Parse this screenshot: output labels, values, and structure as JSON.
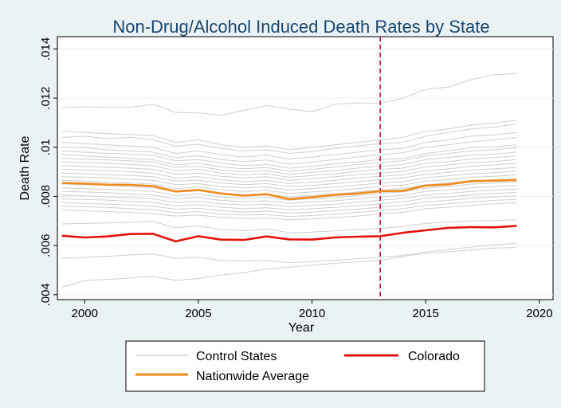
{
  "chart_data": {
    "type": "line",
    "title": "Non-Drug/Alcohol Induced Death Rates by State",
    "xlabel": "Year",
    "ylabel": "Death Rate",
    "xlim": [
      1998.8,
      2020.6
    ],
    "ylim": [
      0.0038,
      0.0145
    ],
    "x_ticks": [
      2000,
      2005,
      2010,
      2015,
      2020
    ],
    "x_tick_labels": [
      "2000",
      "2005",
      "2010",
      "2015",
      "2020"
    ],
    "y_ticks": [
      0.004,
      0.006,
      0.008,
      0.01,
      0.012,
      0.014
    ],
    "y_tick_labels": [
      ".004",
      ".006",
      ".008",
      ".01",
      ".012",
      ".014"
    ],
    "grid": "horizontal",
    "vertical_reference_line": {
      "x": 2013,
      "style": "dashed",
      "color": "#b3124a"
    },
    "legend_position": "bottom",
    "x": [
      1999,
      2000,
      2001,
      2002,
      2003,
      2004,
      2005,
      2006,
      2007,
      2008,
      2009,
      2010,
      2011,
      2012,
      2013,
      2014,
      2015,
      2016,
      2017,
      2018,
      2019
    ],
    "series": [
      {
        "name": "Nationwide Average",
        "color": "#f28a1e",
        "values": [
          0.00855,
          0.00852,
          0.00848,
          0.00847,
          0.00842,
          0.0082,
          0.00826,
          0.00812,
          0.00803,
          0.00809,
          0.00789,
          0.00797,
          0.00806,
          0.00812,
          0.00821,
          0.00823,
          0.00844,
          0.00849,
          0.00862,
          0.00864,
          0.00866
        ]
      },
      {
        "name": "Colorado",
        "color": "#e3120b",
        "values": [
          0.0064,
          0.00633,
          0.00637,
          0.00647,
          0.00648,
          0.00617,
          0.00638,
          0.00624,
          0.00623,
          0.00637,
          0.00625,
          0.00624,
          0.00633,
          0.00636,
          0.00638,
          0.00652,
          0.00662,
          0.00672,
          0.00675,
          0.00674,
          0.0068
        ]
      }
    ],
    "control_states": {
      "name": "Control States",
      "color": "#cfcfcf",
      "lines": [
        [
          0.0116,
          0.01165,
          0.01162,
          0.01162,
          0.01175,
          0.01142,
          0.0114,
          0.0113,
          0.0115,
          0.0117,
          0.01155,
          0.01145,
          0.01175,
          0.0118,
          0.01178,
          0.012,
          0.01235,
          0.01245,
          0.01275,
          0.01295,
          0.013
        ],
        [
          0.01065,
          0.0106,
          0.01055,
          0.01052,
          0.01048,
          0.0102,
          0.0103,
          0.0101,
          0.01,
          0.01005,
          0.0099,
          0.01,
          0.0101,
          0.0102,
          0.0103,
          0.0104,
          0.01065,
          0.01075,
          0.0109,
          0.01098,
          0.0111
        ],
        [
          0.0104,
          0.01045,
          0.01035,
          0.0104,
          0.0103,
          0.01005,
          0.01012,
          0.00995,
          0.00985,
          0.0099,
          0.00975,
          0.00982,
          0.00995,
          0.01005,
          0.01015,
          0.0102,
          0.01045,
          0.0106,
          0.01075,
          0.01082,
          0.01095
        ],
        [
          0.0102,
          0.01015,
          0.0101,
          0.01005,
          0.01,
          0.00975,
          0.00985,
          0.0097,
          0.0096,
          0.00968,
          0.00952,
          0.0096,
          0.0097,
          0.0098,
          0.0099,
          0.00995,
          0.0102,
          0.0103,
          0.01045,
          0.0105,
          0.0106
        ],
        [
          0.01,
          0.00998,
          0.0099,
          0.00985,
          0.0098,
          0.00958,
          0.00965,
          0.0095,
          0.00942,
          0.00948,
          0.00932,
          0.0094,
          0.0095,
          0.0096,
          0.0097,
          0.00978,
          0.01,
          0.0101,
          0.01022,
          0.0103,
          0.0104
        ],
        [
          0.00985,
          0.0098,
          0.00975,
          0.00972,
          0.00968,
          0.00945,
          0.0095,
          0.00935,
          0.00925,
          0.0093,
          0.00915,
          0.00922,
          0.00932,
          0.0094,
          0.0095,
          0.00955,
          0.00975,
          0.00985,
          0.00998,
          0.01002,
          0.0101
        ],
        [
          0.0097,
          0.00965,
          0.0096,
          0.00955,
          0.0095,
          0.00928,
          0.00935,
          0.0092,
          0.00912,
          0.00918,
          0.00902,
          0.0091,
          0.0092,
          0.0093,
          0.00938,
          0.00945,
          0.00965,
          0.00975,
          0.00985,
          0.0099,
          0.00998
        ],
        [
          0.00955,
          0.00952,
          0.00948,
          0.00945,
          0.0094,
          0.00918,
          0.00922,
          0.00908,
          0.009,
          0.00905,
          0.0089,
          0.00898,
          0.00905,
          0.00915,
          0.00922,
          0.0093,
          0.0095,
          0.00958,
          0.00968,
          0.00972,
          0.0098
        ],
        [
          0.0094,
          0.00938,
          0.00935,
          0.0093,
          0.00925,
          0.00905,
          0.0091,
          0.00895,
          0.00888,
          0.00892,
          0.00878,
          0.00885,
          0.00892,
          0.00902,
          0.0091,
          0.00915,
          0.00935,
          0.00942,
          0.00952,
          0.00958,
          0.00965
        ],
        [
          0.00925,
          0.00922,
          0.00918,
          0.00915,
          0.0091,
          0.0089,
          0.00895,
          0.00882,
          0.00875,
          0.0088,
          0.00865,
          0.00872,
          0.0088,
          0.00888,
          0.00895,
          0.00902,
          0.0092,
          0.00928,
          0.00938,
          0.00942,
          0.0095
        ],
        [
          0.0091,
          0.00908,
          0.00905,
          0.009,
          0.00895,
          0.00875,
          0.0088,
          0.00868,
          0.0086,
          0.00865,
          0.00852,
          0.00858,
          0.00865,
          0.00875,
          0.00882,
          0.00888,
          0.00905,
          0.00912,
          0.00922,
          0.00928,
          0.00935
        ],
        [
          0.00895,
          0.00892,
          0.00888,
          0.00885,
          0.0088,
          0.00862,
          0.00866,
          0.00855,
          0.00848,
          0.00852,
          0.0084,
          0.00845,
          0.00852,
          0.0086,
          0.00868,
          0.00875,
          0.0089,
          0.00898,
          0.00908,
          0.00912,
          0.00918
        ],
        [
          0.0088,
          0.00878,
          0.00875,
          0.0087,
          0.00865,
          0.00848,
          0.00852,
          0.0084,
          0.00835,
          0.00838,
          0.00826,
          0.00832,
          0.00838,
          0.00846,
          0.00854,
          0.0086,
          0.00876,
          0.00884,
          0.00892,
          0.00897,
          0.00902
        ],
        [
          0.00865,
          0.00862,
          0.00858,
          0.00855,
          0.0085,
          0.00832,
          0.00838,
          0.00826,
          0.0082,
          0.00825,
          0.00812,
          0.00818,
          0.00824,
          0.00832,
          0.0084,
          0.00846,
          0.00862,
          0.00868,
          0.00878,
          0.00882,
          0.00888
        ],
        [
          0.0085,
          0.00848,
          0.00845,
          0.0084,
          0.00836,
          0.00818,
          0.00824,
          0.00812,
          0.00806,
          0.0081,
          0.00798,
          0.00805,
          0.0081,
          0.00818,
          0.00826,
          0.00832,
          0.00848,
          0.00855,
          0.00864,
          0.00868,
          0.00872
        ],
        [
          0.00835,
          0.00832,
          0.00828,
          0.00825,
          0.0082,
          0.00804,
          0.0081,
          0.00798,
          0.00792,
          0.00796,
          0.00785,
          0.0079,
          0.00796,
          0.00804,
          0.00812,
          0.00818,
          0.00834,
          0.0084,
          0.0085,
          0.00854,
          0.00858
        ],
        [
          0.0082,
          0.00818,
          0.00815,
          0.0081,
          0.00806,
          0.0079,
          0.00795,
          0.00784,
          0.00778,
          0.00782,
          0.00772,
          0.00778,
          0.00782,
          0.0079,
          0.00798,
          0.00805,
          0.0082,
          0.00826,
          0.00835,
          0.0084,
          0.00844
        ],
        [
          0.00805,
          0.00802,
          0.00798,
          0.00795,
          0.0079,
          0.00775,
          0.0078,
          0.0077,
          0.00765,
          0.00768,
          0.00758,
          0.00764,
          0.00768,
          0.00776,
          0.00784,
          0.00792,
          0.00806,
          0.00812,
          0.0082,
          0.00825,
          0.0083
        ],
        [
          0.0079,
          0.00788,
          0.00785,
          0.0078,
          0.00776,
          0.00762,
          0.00766,
          0.00756,
          0.0075,
          0.00754,
          0.00745,
          0.0075,
          0.00755,
          0.00762,
          0.0077,
          0.00778,
          0.00792,
          0.00798,
          0.00806,
          0.00812,
          0.00816
        ],
        [
          0.00775,
          0.00772,
          0.00768,
          0.00765,
          0.0076,
          0.00748,
          0.00752,
          0.00742,
          0.00736,
          0.0074,
          0.00732,
          0.00736,
          0.00742,
          0.00748,
          0.00756,
          0.00764,
          0.00778,
          0.00784,
          0.00792,
          0.00798,
          0.00802
        ],
        [
          0.0076,
          0.00758,
          0.00755,
          0.0075,
          0.00746,
          0.00734,
          0.00738,
          0.00728,
          0.00724,
          0.00726,
          0.00718,
          0.00722,
          0.00728,
          0.00735,
          0.00742,
          0.0075,
          0.00764,
          0.0077,
          0.00778,
          0.00784,
          0.00788
        ],
        [
          0.00745,
          0.00742,
          0.00738,
          0.00735,
          0.0073,
          0.0072,
          0.00724,
          0.00715,
          0.0071,
          0.00712,
          0.00705,
          0.00708,
          0.00714,
          0.0072,
          0.00728,
          0.00736,
          0.0075,
          0.00756,
          0.00764,
          0.0077,
          0.00774
        ],
        [
          0.00688,
          0.0069,
          0.00692,
          0.00695,
          0.00698,
          0.00672,
          0.0068,
          0.00665,
          0.0066,
          0.00668,
          0.00652,
          0.00655,
          0.0066,
          0.00665,
          0.0067,
          0.00678,
          0.0069,
          0.00695,
          0.007,
          0.00702,
          0.00705
        ],
        [
          0.00548,
          0.00552,
          0.00556,
          0.00562,
          0.00566,
          0.00548,
          0.00552,
          0.0054,
          0.00538,
          0.0054,
          0.0053,
          0.00535,
          0.0054,
          0.00546,
          0.00552,
          0.0056,
          0.00574,
          0.00584,
          0.00594,
          0.00602,
          0.0061
        ],
        [
          0.0043,
          0.00458,
          0.00462,
          0.00468,
          0.00475,
          0.00458,
          0.00466,
          0.0048,
          0.0049,
          0.00505,
          0.00512,
          0.0052,
          0.00528,
          0.00534,
          0.0054,
          0.00556,
          0.00568,
          0.00575,
          0.00582,
          0.0059,
          0.00592
        ]
      ]
    }
  },
  "legend": {
    "items": [
      {
        "label": "Control States",
        "color": "#cfcfcf"
      },
      {
        "label": "Colorado",
        "color": "#e3120b"
      },
      {
        "label": "Nationwide Average",
        "color": "#f28a1e"
      }
    ]
  }
}
